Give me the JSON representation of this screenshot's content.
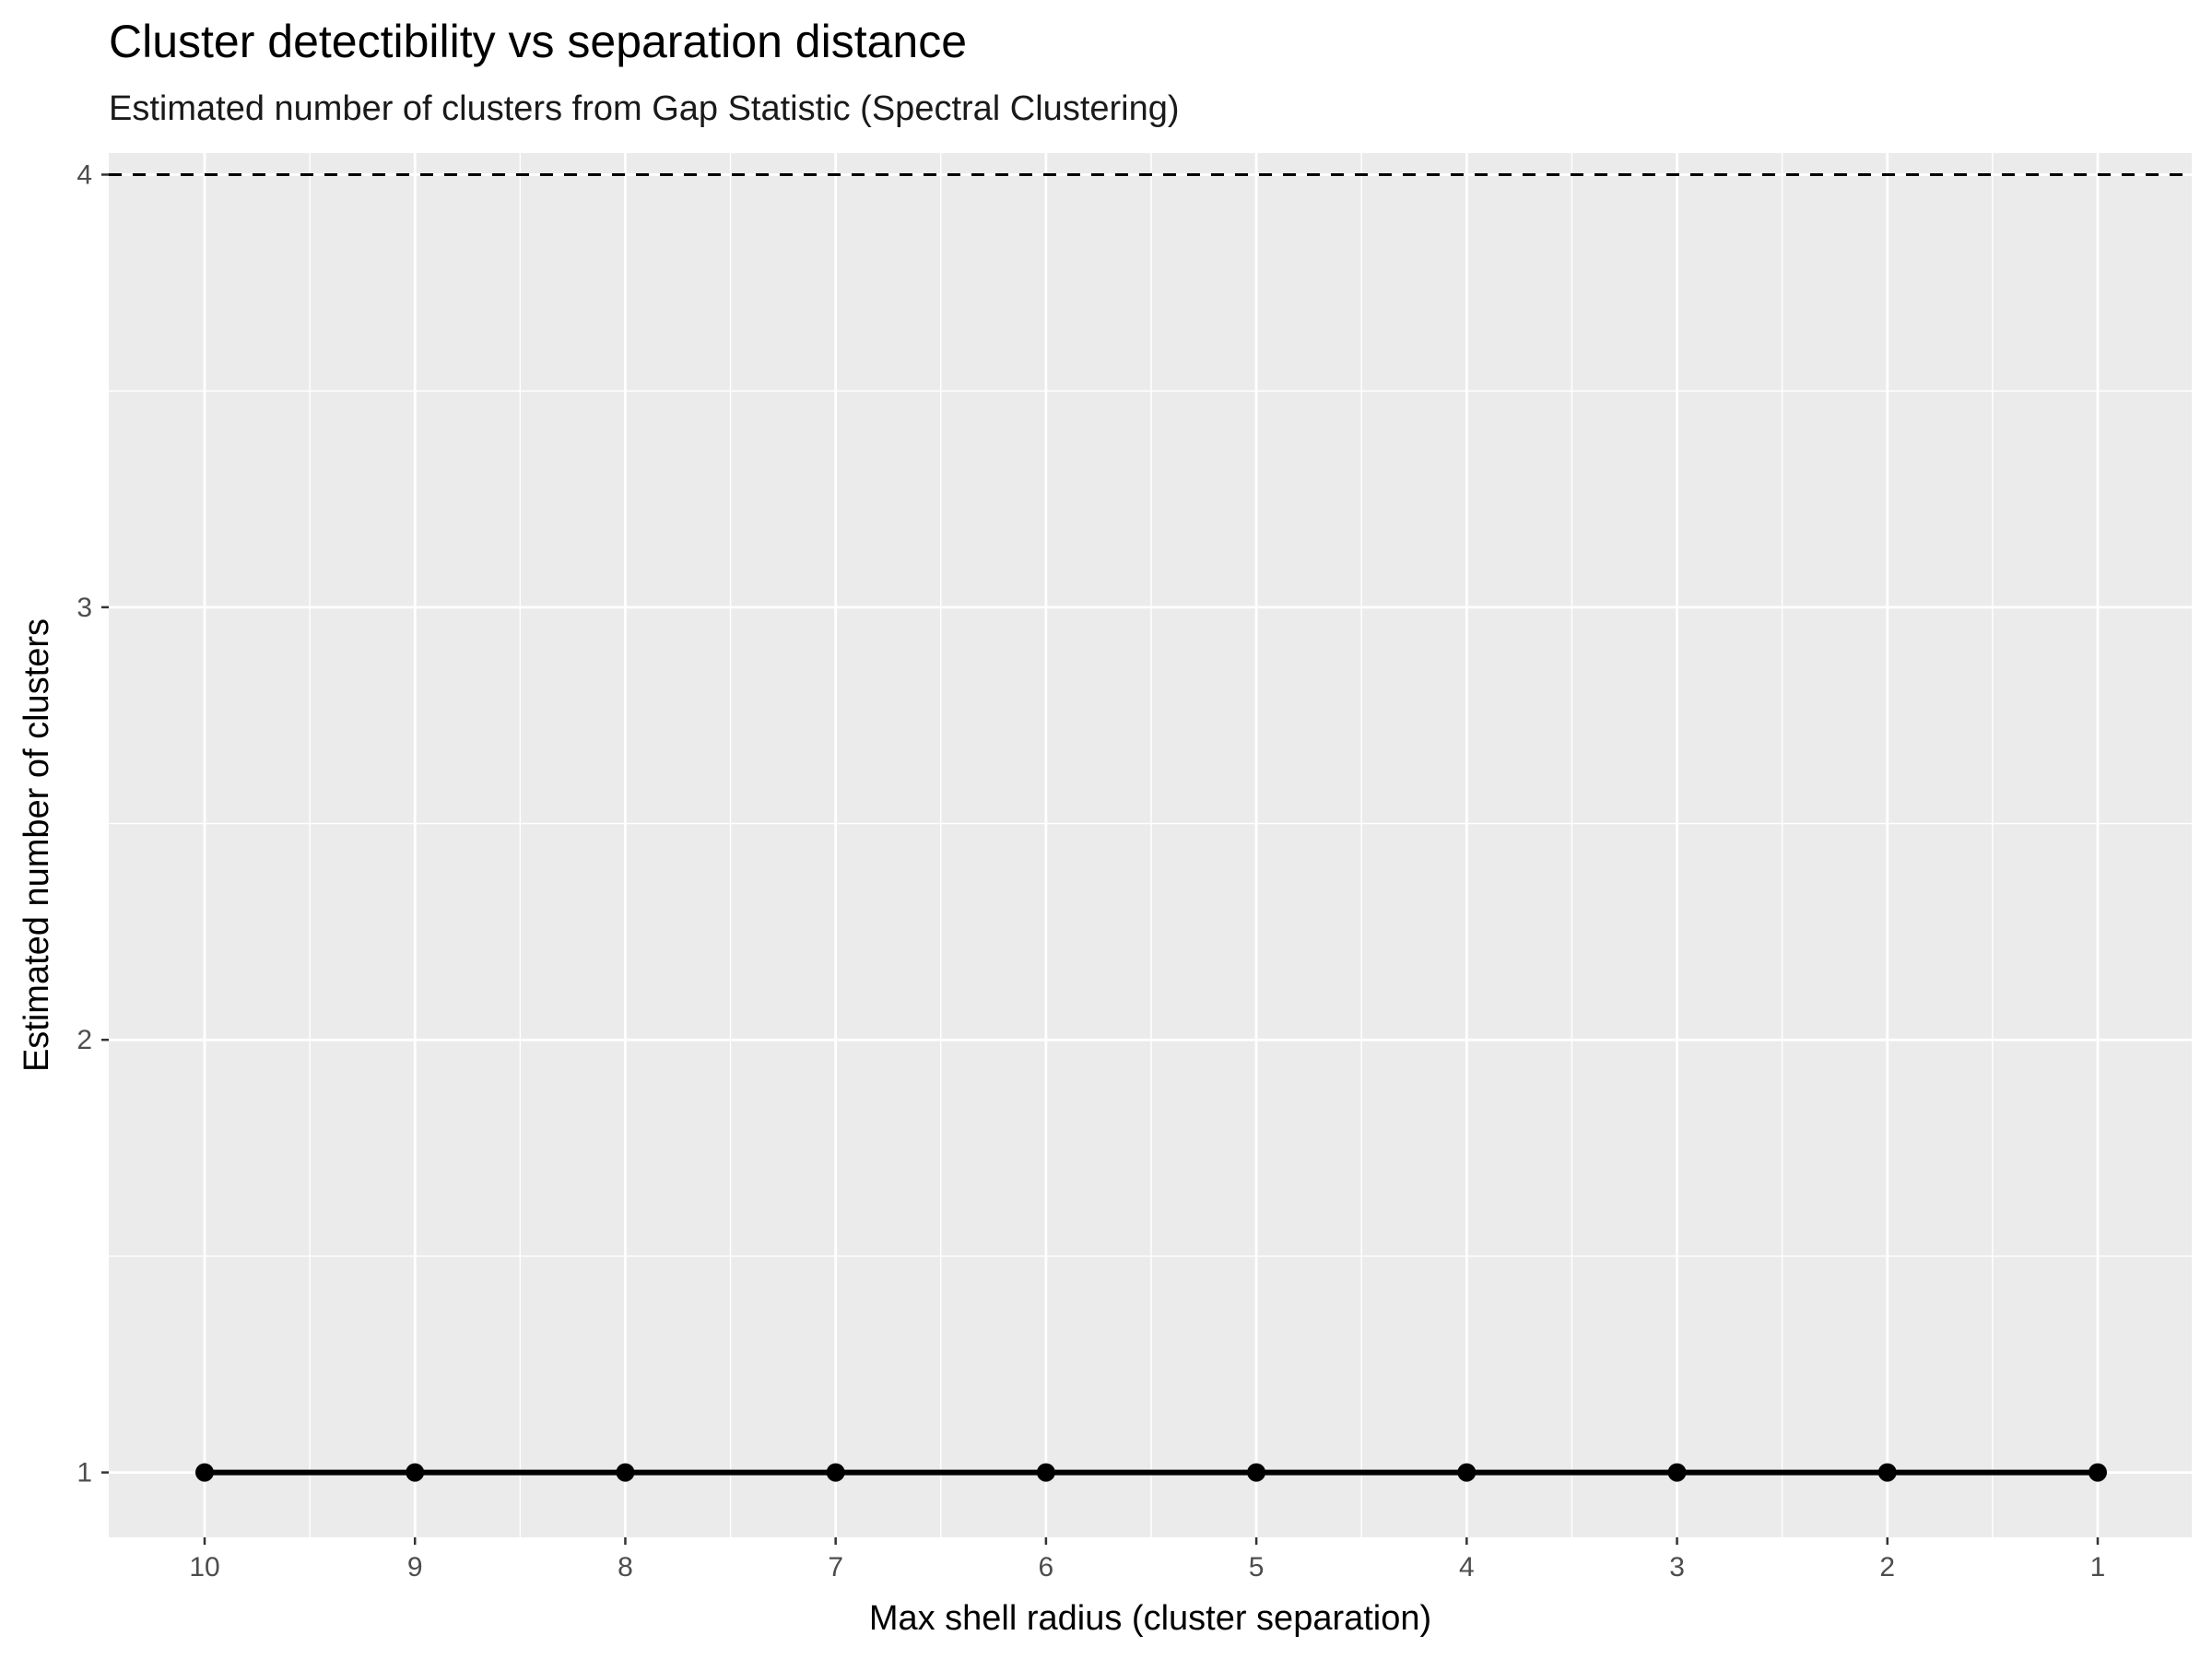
{
  "chart_data": {
    "type": "line",
    "title": "Cluster detectibility vs separation distance",
    "subtitle": "Estimated number of clusters from Gap Statistic (Spectral Clustering)",
    "xlabel": "Max shell radius (cluster separation)",
    "ylabel": "Estimated number of clusters",
    "x": [
      10,
      9,
      8,
      7,
      6,
      5,
      4,
      3,
      2,
      1
    ],
    "x_reversed": true,
    "x_ticks": [
      "10",
      "9",
      "8",
      "7",
      "6",
      "5",
      "4",
      "3",
      "2",
      "1"
    ],
    "y_ticks": [
      1,
      2,
      3,
      4
    ],
    "ylim": [
      0.85,
      4.05
    ],
    "series": [
      {
        "values": [
          1,
          1,
          1,
          1,
          1,
          1,
          1,
          1,
          1,
          1
        ],
        "color": "#000000",
        "markers": true
      }
    ],
    "reference_line": {
      "y": 4,
      "style": "dashed",
      "color": "#000000"
    },
    "panel_background": "#ebebeb",
    "grid": true,
    "legend": "none"
  }
}
